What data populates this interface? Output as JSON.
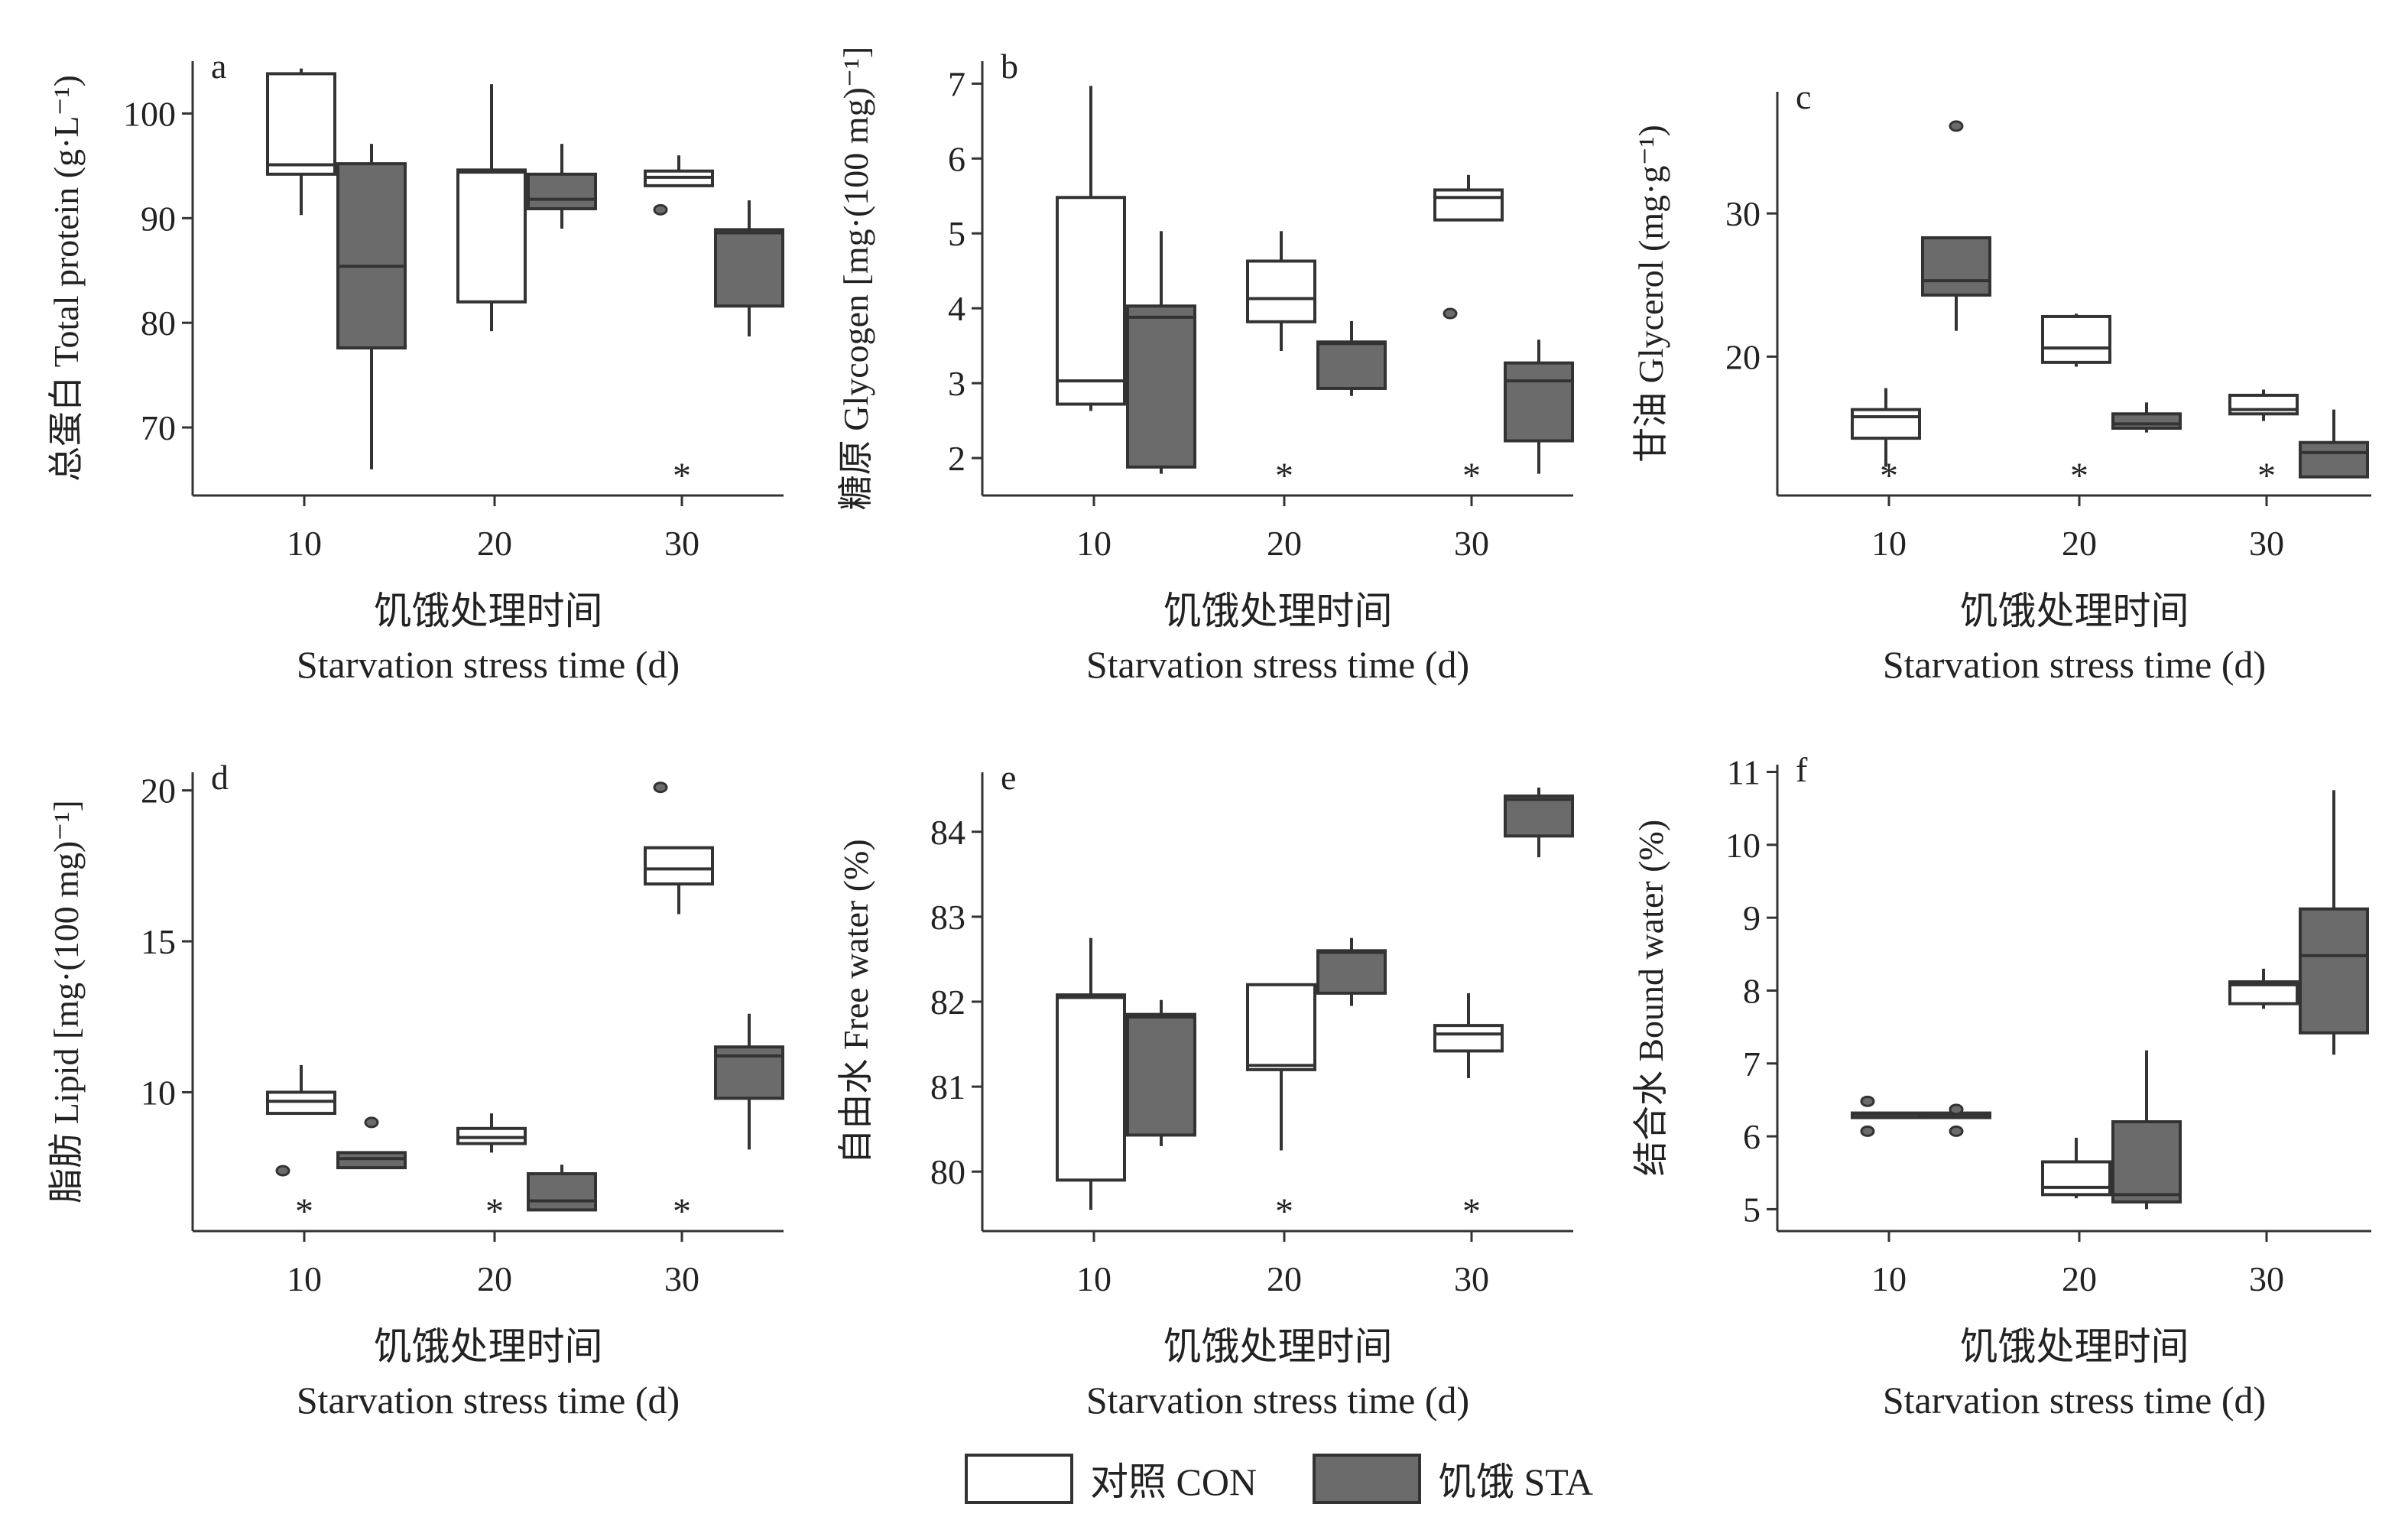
{
  "legend": {
    "con_label": "对照 CON",
    "sta_label": "饥饿 STA",
    "con_color": "#ffffff",
    "sta_color": "#6b6b6b"
  },
  "colors": {
    "con": "#ffffff",
    "sta": "#6b6b6b",
    "axis": "#333333"
  },
  "chart_data": [
    {
      "type": "box",
      "panel": "a",
      "ylabel": "总蛋白 Total protein (g·L⁻¹)",
      "xlabel_cn": "饥饿处理时间",
      "xlabel_en": "Starvation stress time (d)",
      "categories": [
        "10",
        "20",
        "30"
      ],
      "yticks": [
        70,
        80,
        90,
        100
      ],
      "ylim": [
        63.5,
        105
      ],
      "significance": [
        "",
        "",
        "*"
      ],
      "series": [
        {
          "name": "对照 CON",
          "boxes": [
            {
              "min": 90.3,
              "q1": 94.2,
              "median": 95.1,
              "q3": 103.8,
              "max": 104.3,
              "outliers": []
            },
            {
              "min": 79.2,
              "q1": 82.0,
              "median": 94.4,
              "q3": 94.6,
              "max": 102.8,
              "outliers": []
            },
            {
              "min": 93.1,
              "q1": 93.1,
              "median": 93.9,
              "q3": 94.5,
              "max": 96.0,
              "outliers": [
                90.8
              ]
            }
          ]
        },
        {
          "name": "饥饿 STA",
          "boxes": [
            {
              "min": 66.0,
              "q1": 77.6,
              "median": 85.4,
              "q3": 95.2,
              "max": 97.1,
              "outliers": []
            },
            {
              "min": 89.0,
              "q1": 90.9,
              "median": 91.8,
              "q3": 94.2,
              "max": 97.1,
              "outliers": []
            },
            {
              "min": 78.7,
              "q1": 81.6,
              "median": 88.6,
              "q3": 88.9,
              "max": 91.7,
              "outliers": []
            }
          ]
        }
      ]
    },
    {
      "type": "box",
      "panel": "b",
      "ylabel": "糖原 Glycogen [mg·(100 mg)⁻¹]",
      "xlabel_cn": "饥饿处理时间",
      "xlabel_en": "Starvation stress time (d)",
      "categories": [
        "10",
        "20",
        "30"
      ],
      "yticks": [
        2,
        3,
        4,
        5,
        6,
        7
      ],
      "ylim": [
        1.5,
        7.3
      ],
      "significance": [
        "",
        "*",
        "*"
      ],
      "series": [
        {
          "name": "对照 CON",
          "boxes": [
            {
              "min": 2.63,
              "q1": 2.72,
              "median": 3.03,
              "q3": 5.48,
              "max": 6.97,
              "outliers": []
            },
            {
              "min": 3.43,
              "q1": 3.82,
              "median": 4.13,
              "q3": 4.63,
              "max": 5.03,
              "outliers": []
            },
            {
              "min": 5.18,
              "q1": 5.18,
              "median": 5.48,
              "q3": 5.58,
              "max": 5.78,
              "outliers": [
                3.93
              ]
            }
          ]
        },
        {
          "name": "饥饿 STA",
          "boxes": [
            {
              "min": 1.79,
              "q1": 1.88,
              "median": 3.88,
              "q3": 4.03,
              "max": 5.03,
              "outliers": []
            },
            {
              "min": 2.83,
              "q1": 2.93,
              "median": 3.53,
              "q3": 3.55,
              "max": 3.83,
              "outliers": []
            },
            {
              "min": 1.79,
              "q1": 2.23,
              "median": 3.03,
              "q3": 3.27,
              "max": 3.58,
              "outliers": []
            }
          ]
        }
      ]
    },
    {
      "type": "box",
      "panel": "c",
      "ylabel": "甘油 Glycerol (mg·g⁻¹)",
      "xlabel_cn": "饥饿处理时间",
      "xlabel_en": "Starvation stress time (d)",
      "categories": [
        "10",
        "20",
        "30"
      ],
      "yticks": [
        20,
        30
      ],
      "ylim": [
        10.3,
        38.5
      ],
      "significance": [
        "*",
        "*",
        "*"
      ],
      "series": [
        {
          "name": "对照 CON",
          "boxes": [
            {
              "min": 12.3,
              "q1": 14.3,
              "median": 15.8,
              "q3": 16.3,
              "max": 17.8,
              "outliers": []
            },
            {
              "min": 19.3,
              "q1": 19.6,
              "median": 20.6,
              "q3": 22.8,
              "max": 23.0,
              "outliers": []
            },
            {
              "min": 15.5,
              "q1": 16.0,
              "median": 16.3,
              "q3": 17.3,
              "max": 17.7,
              "outliers": []
            }
          ]
        },
        {
          "name": "饥饿 STA",
          "boxes": [
            {
              "min": 21.8,
              "q1": 24.3,
              "median": 25.3,
              "q3": 28.3,
              "max": 28.3,
              "outliers": [
                36.1
              ]
            },
            {
              "min": 14.7,
              "q1": 15.0,
              "median": 15.3,
              "q3": 16.0,
              "max": 16.8,
              "outliers": []
            },
            {
              "min": 11.6,
              "q1": 11.6,
              "median": 13.3,
              "q3": 14.0,
              "max": 16.3,
              "outliers": []
            }
          ]
        }
      ]
    },
    {
      "type": "box",
      "panel": "d",
      "ylabel": "脂肪 Lipid [mg·(100 mg)⁻¹]",
      "xlabel_cn": "饥饿处理时间",
      "xlabel_en": "Starvation stress time (d)",
      "categories": [
        "10",
        "20",
        "30"
      ],
      "yticks": [
        10,
        15,
        20
      ],
      "ylim": [
        5.4,
        20.6
      ],
      "significance": [
        "*",
        "*",
        "*"
      ],
      "series": [
        {
          "name": "对照 CON",
          "boxes": [
            {
              "min": 9.3,
              "q1": 9.3,
              "median": 9.7,
              "q3": 10.0,
              "max": 10.9,
              "outliers": [
                7.4
              ]
            },
            {
              "min": 8.0,
              "q1": 8.3,
              "median": 8.5,
              "q3": 8.8,
              "max": 9.3,
              "outliers": []
            },
            {
              "min": 15.9,
              "q1": 16.9,
              "median": 17.4,
              "q3": 18.1,
              "max": 18.1,
              "outliers": [
                20.1
              ]
            }
          ]
        },
        {
          "name": "饥饿 STA",
          "boxes": [
            {
              "min": 7.5,
              "q1": 7.5,
              "median": 7.8,
              "q3": 8.0,
              "max": 8.0,
              "outliers": [
                9.0
              ]
            },
            {
              "min": 6.1,
              "q1": 6.1,
              "median": 6.4,
              "q3": 7.3,
              "max": 7.6,
              "outliers": []
            },
            {
              "min": 8.1,
              "q1": 9.8,
              "median": 11.2,
              "q3": 11.5,
              "max": 12.6,
              "outliers": []
            }
          ]
        }
      ]
    },
    {
      "type": "box",
      "panel": "e",
      "ylabel": "自由水 Free water (%)",
      "xlabel_cn": "饥饿处理时间",
      "xlabel_en": "Starvation stress time (d)",
      "categories": [
        "10",
        "20",
        "30"
      ],
      "yticks": [
        80,
        81,
        82,
        83,
        84
      ],
      "ylim": [
        79.3,
        84.7
      ],
      "significance": [
        "",
        "*",
        "*"
      ],
      "series": [
        {
          "name": "对照 CON",
          "boxes": [
            {
              "min": 79.55,
              "q1": 79.9,
              "median": 82.05,
              "q3": 82.08,
              "max": 82.75,
              "outliers": []
            },
            {
              "min": 80.25,
              "q1": 81.2,
              "median": 81.25,
              "q3": 82.2,
              "max": 82.2,
              "outliers": []
            },
            {
              "min": 81.1,
              "q1": 81.42,
              "median": 81.62,
              "q3": 81.72,
              "max": 82.1,
              "outliers": []
            }
          ]
        },
        {
          "name": "饥饿 STA",
          "boxes": [
            {
              "min": 80.3,
              "q1": 80.43,
              "median": 81.82,
              "q3": 81.85,
              "max": 82.02,
              "outliers": []
            },
            {
              "min": 81.95,
              "q1": 82.1,
              "median": 82.58,
              "q3": 82.6,
              "max": 82.75,
              "outliers": []
            },
            {
              "min": 83.7,
              "q1": 83.95,
              "median": 84.38,
              "q3": 84.42,
              "max": 84.52,
              "outliers": []
            }
          ]
        }
      ]
    },
    {
      "type": "box",
      "panel": "f",
      "ylabel": "结合水 Bound water (%)",
      "xlabel_cn": "饥饿处理时间",
      "xlabel_en": "Starvation stress time (d)",
      "categories": [
        "10",
        "20",
        "30"
      ],
      "yticks": [
        5,
        6,
        7,
        8,
        9,
        10,
        11
      ],
      "ylim": [
        4.7,
        11.1
      ],
      "significance": [
        "",
        "",
        ""
      ],
      "series": [
        {
          "name": "对照 CON",
          "boxes": [
            {
              "min": 6.27,
              "q1": 6.27,
              "median": 6.3,
              "q3": 6.32,
              "max": 6.32,
              "outliers": [
                6.48,
                6.07
              ]
            },
            {
              "min": 5.15,
              "q1": 5.2,
              "median": 5.3,
              "q3": 5.65,
              "max": 5.98,
              "outliers": []
            },
            {
              "min": 7.75,
              "q1": 7.82,
              "median": 8.08,
              "q3": 8.12,
              "max": 8.3,
              "outliers": []
            }
          ]
        },
        {
          "name": "饥饿 STA",
          "boxes": [
            {
              "min": 6.27,
              "q1": 6.27,
              "median": 6.3,
              "q3": 6.32,
              "max": 6.32,
              "outliers": [
                6.37,
                6.07
              ]
            },
            {
              "min": 5.0,
              "q1": 5.1,
              "median": 5.2,
              "q3": 6.2,
              "max": 7.18,
              "outliers": []
            },
            {
              "min": 7.12,
              "q1": 7.42,
              "median": 8.48,
              "q3": 9.12,
              "max": 10.75,
              "outliers": []
            }
          ]
        }
      ]
    }
  ]
}
